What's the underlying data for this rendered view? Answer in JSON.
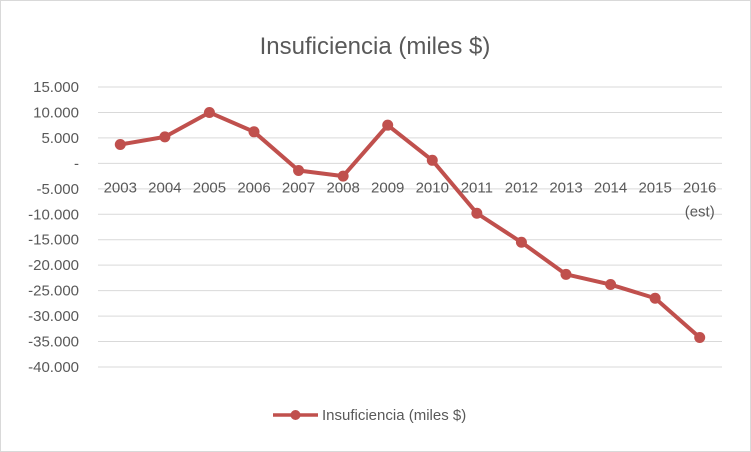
{
  "chart_data": {
    "type": "line",
    "title": "Insuficiencia (miles $)",
    "xlabel": "",
    "ylabel": "",
    "categories": [
      "2003",
      "2004",
      "2005",
      "2006",
      "2007",
      "2008",
      "2009",
      "2010",
      "2011",
      "2012",
      "2013",
      "2014",
      "2015",
      "2016 (est)"
    ],
    "series": [
      {
        "name": "Insuficiencia (miles $)",
        "values": [
          3700,
          5200,
          10000,
          6200,
          -1400,
          -2500,
          7500,
          600,
          -9800,
          -15500,
          -21800,
          -23800,
          -26500,
          -34200
        ],
        "color": "#c0504d"
      }
    ],
    "ylim": [
      -40000,
      15000
    ],
    "yticks": [
      15000,
      10000,
      5000,
      0,
      -5000,
      -10000,
      -15000,
      -20000,
      -25000,
      -30000,
      -35000,
      -40000
    ],
    "ytick_labels": [
      "15.000",
      "10.000",
      "5.000",
      "-",
      "-5.000",
      "-10.000",
      "-15.000",
      "-20.000",
      "-25.000",
      "-30.000",
      "-35.000",
      "-40.000"
    ],
    "grid": true,
    "legend_position": "bottom"
  }
}
